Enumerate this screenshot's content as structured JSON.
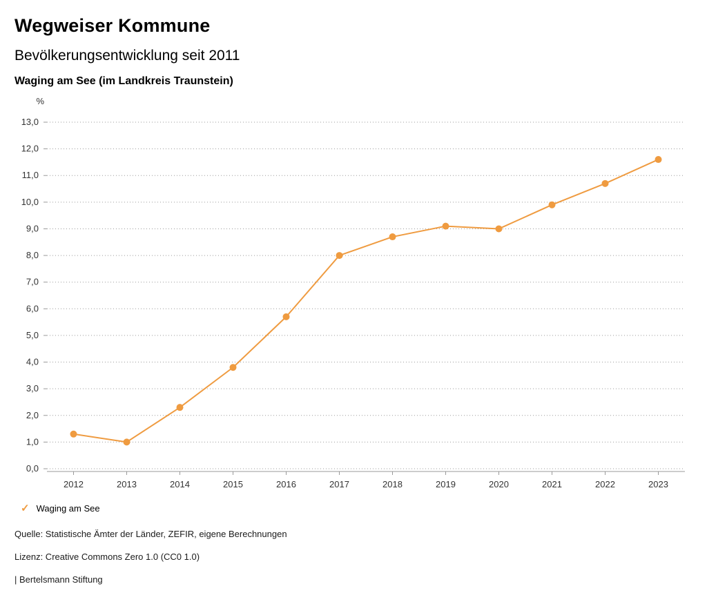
{
  "header": {
    "title": "Wegweiser Kommune",
    "subtitle": "Bevölkerungsentwicklung seit 2011",
    "region": "Waging am See (im Landkreis Traunstein)"
  },
  "chart_data": {
    "type": "line",
    "title": "Bevölkerungsentwicklung seit 2011",
    "xlabel": "",
    "ylabel": "%",
    "ylim": [
      0,
      13
    ],
    "ytick_step": 1,
    "ytick_labels": [
      "0,0",
      "1,0",
      "2,0",
      "3,0",
      "4,0",
      "5,0",
      "6,0",
      "7,0",
      "8,0",
      "9,0",
      "10,0",
      "11,0",
      "12,0",
      "13,0"
    ],
    "x": [
      "2012",
      "2013",
      "2014",
      "2015",
      "2016",
      "2017",
      "2018",
      "2019",
      "2020",
      "2021",
      "2022",
      "2023"
    ],
    "series": [
      {
        "name": "Waging am See",
        "color": "#ef9b40",
        "values": [
          1.3,
          1.0,
          2.3,
          3.8,
          5.7,
          8.0,
          8.7,
          9.1,
          9.0,
          9.9,
          10.7,
          11.6
        ]
      }
    ],
    "grid": "horizontal-dotted",
    "legend_position": "bottom-left"
  },
  "legend": {
    "items": [
      {
        "label": "Waging am See",
        "color": "#ef9b40",
        "checked": true
      }
    ]
  },
  "footer": {
    "source": "Quelle: Statistische Ämter der Länder, ZEFIR, eigene Berechnungen",
    "license": "Lizenz: Creative Commons Zero 1.0 (CC0 1.0)",
    "attribution": "| Bertelsmann Stiftung"
  },
  "colors": {
    "series": "#ef9b40",
    "grid": "#9a9a9a",
    "axis": "#999999",
    "tick_text": "#333333"
  }
}
